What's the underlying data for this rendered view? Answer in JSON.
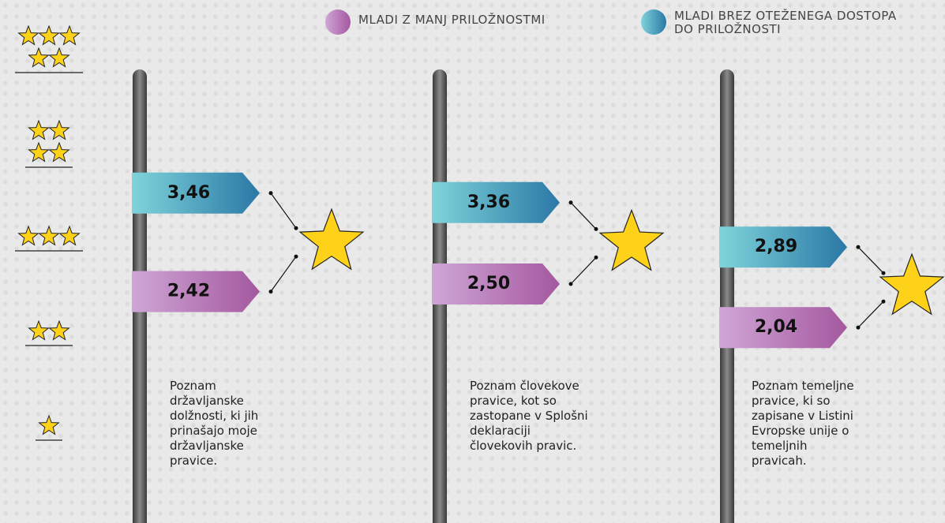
{
  "chart_data": {
    "type": "arrow",
    "categories": [
      "Poznam državljanske dolžnosti, ki jih prinašajo moje državljanske pravice.",
      "Poznam človekove pravice, kot so zastopane v Splošni deklaraciji človekovih pravic.",
      "Poznam temeljne pravice, ki so zapisane v Listini Evropske unije o temeljnih pravicah."
    ],
    "series": [
      {
        "name": "MLADI Z MANJ PRILOŽNOSTMI",
        "color": "#a4589f",
        "values": [
          2.42,
          2.5,
          2.04
        ],
        "value_labels": [
          "2,42",
          "2,50",
          "2,04"
        ]
      },
      {
        "name": "MLADI BREZ OTEŽENEGA DOSTOPA DO PRILOŽNOSTI",
        "color": "#2a78a6",
        "values": [
          3.46,
          3.36,
          2.89
        ],
        "value_labels": [
          "3,46",
          "3,36",
          "2,89"
        ]
      }
    ],
    "ylim": [
      0.5,
      5.5
    ],
    "yticks": [
      1,
      2,
      3,
      4,
      5
    ]
  }
}
